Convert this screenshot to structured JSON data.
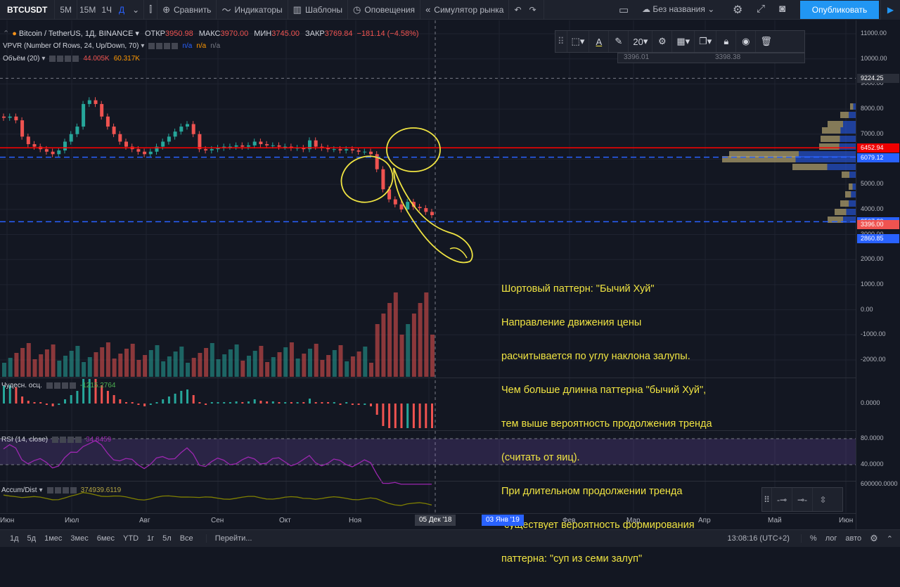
{
  "toolbar": {
    "symbol": "BTCUSDT",
    "intervals": [
      "5M",
      "15M",
      "1Ч",
      "Д"
    ],
    "active_interval": "Д",
    "compare": "Сравнить",
    "indicators": "Индикаторы",
    "templates": "Шаблоны",
    "alerts": "Оповещения",
    "simulator": "Симулятор рынка",
    "layout_name": "Без названия",
    "publish": "Опубликовать"
  },
  "legend": {
    "title": "Bitcoin / TetherUS, 1Д, BINANCE",
    "open_label": "ОТКР",
    "open": "3950.98",
    "high_label": "МАКС",
    "high": "3970.00",
    "low_label": "МИН",
    "low": "3745.00",
    "close_label": "ЗАКР",
    "close": "3769.84",
    "change": "−181.14 (−4.58%)",
    "vpvr_label": "VPVR (Number Of Rows, 24, Up/Down, 70)",
    "vpvr_values": [
      "n/a",
      "n/a",
      "n/a"
    ],
    "volume_label": "Объём (20)",
    "volume_values": [
      "44.005K",
      "60.317K"
    ]
  },
  "drawing_toolbar": {
    "font_size": "20",
    "sub_values": [
      "3396.01",
      "3398.38"
    ]
  },
  "price_axis": {
    "labels": [
      "11000.00",
      "10000.00",
      "9000.00",
      "8000.00",
      "7000.00",
      "6000.00",
      "5000.00",
      "4000.00",
      "3000.00",
      "2000.00",
      "1000.00",
      "0.00",
      "-1000.00",
      "-2000.00"
    ],
    "badges": [
      {
        "value": "9224.25",
        "color": "#2a2e39"
      },
      {
        "value": "6452.94",
        "color": "#ef0000"
      },
      {
        "value": "6079.12",
        "color": "#2962ff"
      },
      {
        "value": "3507.29",
        "color": "#2962ff"
      },
      {
        "value": "3396.00",
        "color": "#ef5350"
      },
      {
        "value": "2860.85",
        "color": "#2962ff"
      }
    ],
    "osc_label": "0.0000",
    "rsi_labels": [
      "80.0000",
      "40.0000"
    ],
    "accum_label": "600000.0000"
  },
  "indicators": {
    "awesome": {
      "label": "Чудесн. осц.",
      "value": "-1215.2764"
    },
    "rsi": {
      "label": "RSI (14, close)",
      "value": "34.8459"
    },
    "accum": {
      "label": "Accum/Dist",
      "value": "374939.6119"
    }
  },
  "annotation": {
    "lines": [
      "Шортовый паттерн: \"Бычий Хуй\"",
      "Направление движения цены",
      "расчитывается по углу наклона залупы.",
      "Чем больше длинна паттерна \"бычий Хуй\",",
      "тем выше вероятность продолжения тренда",
      "(считать от яиц).",
      "При длительном продолжении тренда",
      " существует вероятность формирования",
      "паттерна: \"суп из семи залуп\""
    ]
  },
  "time_axis": {
    "labels": [
      "Июн",
      "Июл",
      "Авг",
      "Сен",
      "Окт",
      "Ноя",
      "Фев",
      "Мар",
      "Апр",
      "Май",
      "Июн"
    ],
    "cursor_date": "05 Дек '18",
    "end_date": "03 Янв '19"
  },
  "bottom_bar": {
    "ranges": [
      "1д",
      "5д",
      "1мес",
      "3мес",
      "6мес",
      "YTD",
      "1г",
      "5л",
      "Все"
    ],
    "goto": "Перейти...",
    "clock": "13:08:16 (UTC+2)",
    "percent": "%",
    "log": "лог",
    "auto": "авто"
  },
  "colors": {
    "bull": "#26a69a",
    "bear": "#ef5350",
    "annotation": "#f0e442",
    "hline_red": "#ff0000",
    "hline_blue": "#2962ff",
    "rsi": "#9c27b0",
    "accum": "#808000"
  },
  "chart_data": {
    "type": "candlestick",
    "series": [
      {
        "name": "BTCUSDT",
        "values": [
          7650,
          7700,
          7550,
          6900,
          6600,
          6500,
          6400,
          6300,
          6200,
          6350,
          6700,
          7000,
          7300,
          8200,
          8350,
          8200,
          7700,
          7300,
          7000,
          6700,
          6500,
          6400,
          6300,
          6200,
          6300,
          6500,
          6700,
          6900,
          7100,
          7300,
          7400,
          7000,
          6400,
          6350,
          6400,
          6450,
          6500,
          6500,
          6550,
          6500,
          6550,
          6700,
          6600,
          6550,
          6550,
          6500,
          6500,
          6450,
          6450,
          6400,
          6750,
          6500,
          6450,
          6400,
          6400,
          6350,
          6400,
          6350,
          6300,
          6300,
          6200,
          5600,
          4800,
          4400,
          4200,
          4000,
          4300,
          4100,
          4050,
          3900,
          3770
        ]
      }
    ],
    "price_range": [
      -2000,
      11000
    ]
  }
}
